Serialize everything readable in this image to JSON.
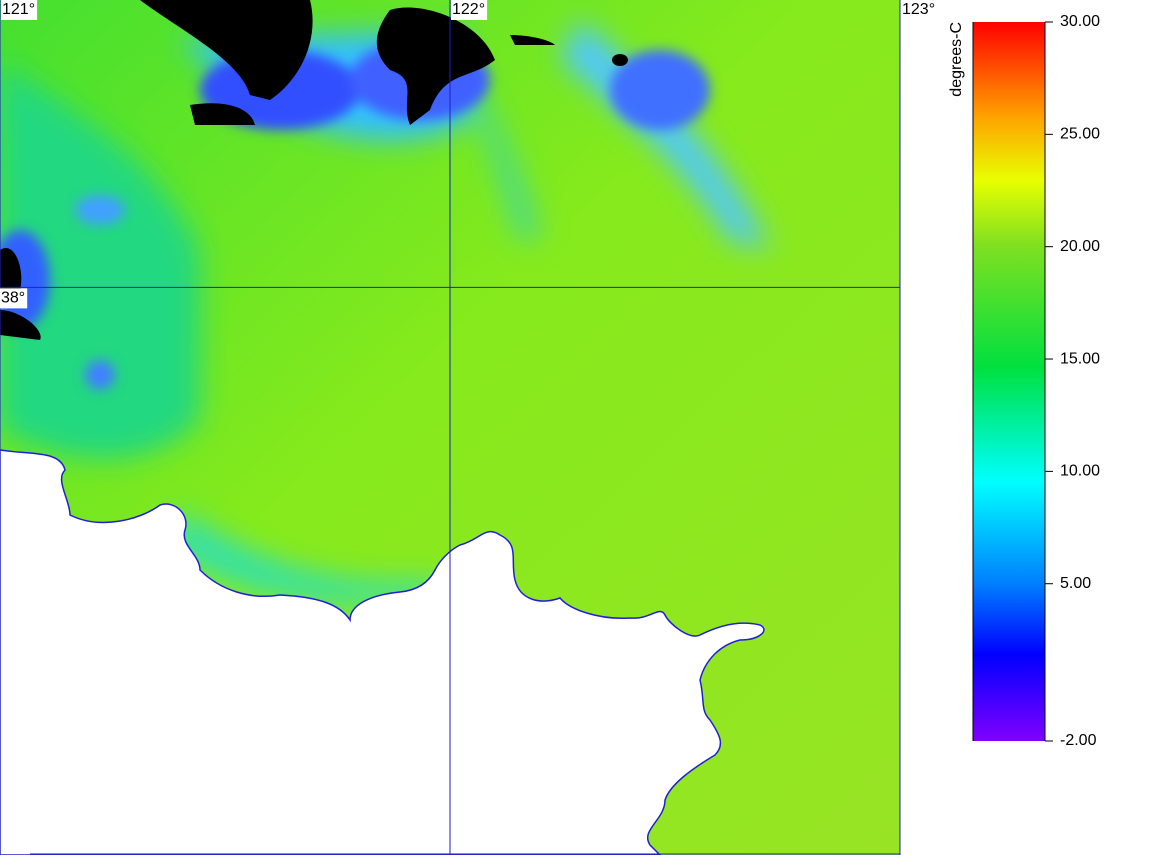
{
  "map": {
    "lonlim": [
      121,
      123
    ],
    "latlim": [
      36.4,
      38.81
    ],
    "lon_lines": [
      {
        "value": 121,
        "label": "121°"
      },
      {
        "value": 122,
        "label": "122°"
      },
      {
        "value": 123,
        "label": "123°"
      }
    ],
    "lat_lines": [
      {
        "value": 38,
        "label": "38°"
      }
    ]
  },
  "colorbar": {
    "title": "degrees-C",
    "lim": [
      -2,
      30
    ],
    "ticks": [
      {
        "value": 30,
        "label": "30.00"
      },
      {
        "value": 25,
        "label": "25.00"
      },
      {
        "value": 20,
        "label": "20.00"
      },
      {
        "value": 15,
        "label": "15.00"
      },
      {
        "value": 10,
        "label": "10.00"
      },
      {
        "value": 5,
        "label": "5.00"
      },
      {
        "value": -2,
        "label": "-2.00"
      }
    ]
  }
}
